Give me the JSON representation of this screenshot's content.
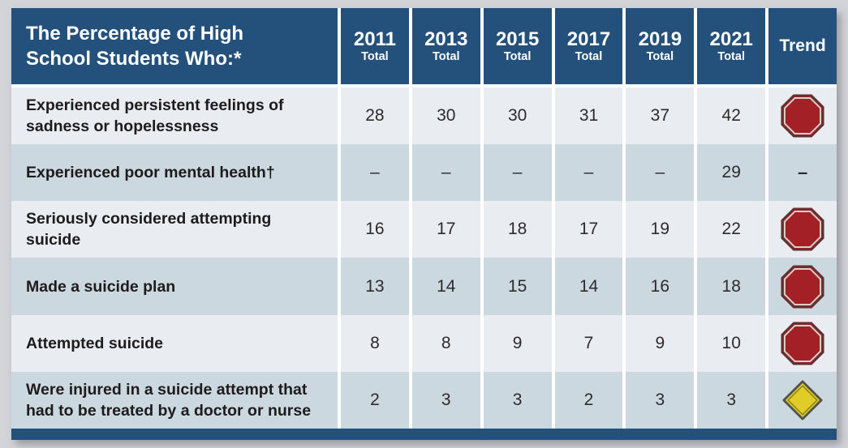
{
  "title": "The Percentage of High\nSchool Students Who:*",
  "trend_header": "Trend",
  "columns": [
    {
      "year": "2011",
      "sub": "Total"
    },
    {
      "year": "2013",
      "sub": "Total"
    },
    {
      "year": "2015",
      "sub": "Total"
    },
    {
      "year": "2017",
      "sub": "Total"
    },
    {
      "year": "2019",
      "sub": "Total"
    },
    {
      "year": "2021",
      "sub": "Total"
    }
  ],
  "rows": [
    {
      "label": "Experienced persistent feelings of\nsadness or hopelessness",
      "values": [
        "28",
        "30",
        "30",
        "31",
        "37",
        "42"
      ],
      "trend": "stop"
    },
    {
      "label": "Experienced poor mental health†",
      "values": [
        "–",
        "–",
        "–",
        "–",
        "–",
        "29"
      ],
      "trend": "–"
    },
    {
      "label": "Seriously considered attempting\nsuicide",
      "values": [
        "16",
        "17",
        "18",
        "17",
        "19",
        "22"
      ],
      "trend": "stop"
    },
    {
      "label": "Made a suicide plan",
      "values": [
        "13",
        "14",
        "15",
        "14",
        "16",
        "18"
      ],
      "trend": "stop"
    },
    {
      "label": "Attempted suicide",
      "values": [
        "8",
        "8",
        "9",
        "7",
        "9",
        "10"
      ],
      "trend": "stop"
    },
    {
      "label": "Were injured in a suicide attempt that\nhad to be treated by a doctor or nurse",
      "values": [
        "2",
        "3",
        "3",
        "2",
        "3",
        "3"
      ],
      "trend": "yield"
    }
  ],
  "icons": {
    "stop": "stop-sign-icon",
    "yield": "caution-diamond-icon"
  },
  "colors": {
    "header_bg": "#24517b",
    "row_light": "#e9ecf1",
    "row_dark": "#ccd8e0",
    "page_bg": "#d2d4d8",
    "label_text": "#1e1b1c",
    "stop_fill": "#a32026",
    "stop_outer_ring": "#613030",
    "stop_inner_ring": "#d6d1c9",
    "yield_fill": "#e0cd28",
    "yield_border": "#52514b"
  },
  "chart_data": {
    "type": "table",
    "title": "The Percentage of High School Students Who:*",
    "columns": [
      "2011 Total",
      "2013 Total",
      "2015 Total",
      "2017 Total",
      "2019 Total",
      "2021 Total",
      "Trend"
    ],
    "rows": [
      {
        "label": "Experienced persistent feelings of sadness or hopelessness",
        "values": [
          28,
          30,
          30,
          31,
          37,
          42
        ],
        "trend": "stop-sign"
      },
      {
        "label": "Experienced poor mental health†",
        "values": [
          null,
          null,
          null,
          null,
          null,
          29
        ],
        "trend": "none"
      },
      {
        "label": "Seriously considered attempting suicide",
        "values": [
          16,
          17,
          18,
          17,
          19,
          22
        ],
        "trend": "stop-sign"
      },
      {
        "label": "Made a suicide plan",
        "values": [
          13,
          14,
          15,
          14,
          16,
          18
        ],
        "trend": "stop-sign"
      },
      {
        "label": "Attempted suicide",
        "values": [
          8,
          8,
          9,
          7,
          9,
          10
        ],
        "trend": "stop-sign"
      },
      {
        "label": "Were injured in a suicide attempt that had to be treated by a doctor or nurse",
        "values": [
          2,
          3,
          3,
          2,
          3,
          3
        ],
        "trend": "caution-sign"
      }
    ]
  }
}
